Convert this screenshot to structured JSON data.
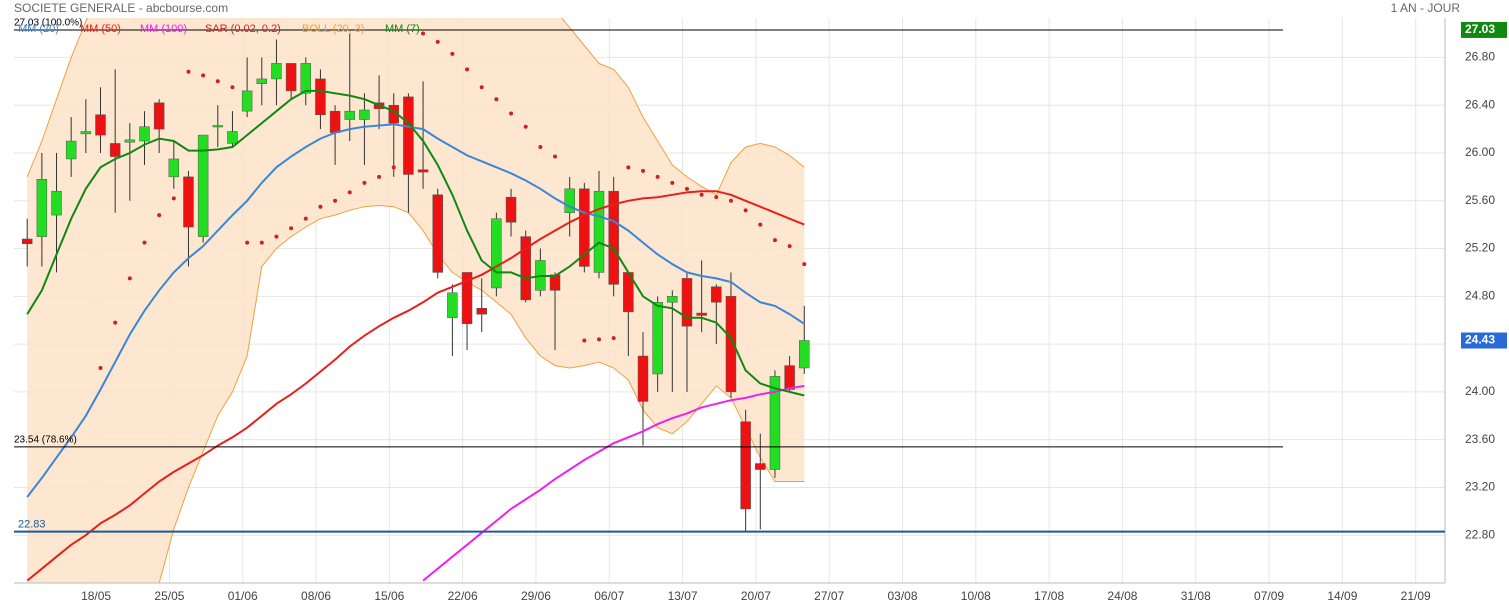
{
  "chart_data": {
    "type": "candlestick",
    "title": "SOCIETE GENERALE - abcbourse.com",
    "period": "1 AN - JOUR",
    "x": [
      0,
      1,
      2,
      3,
      4,
      5,
      6,
      7,
      8,
      9,
      10,
      11,
      12,
      13,
      14,
      15,
      16,
      17,
      18,
      19,
      20,
      21,
      22,
      23,
      24,
      25,
      26,
      27,
      28,
      29,
      30,
      31,
      32,
      33,
      34,
      35,
      36,
      37,
      38,
      39,
      40,
      41,
      42,
      43,
      44,
      45,
      46,
      47,
      48,
      49,
      50,
      51,
      52,
      53
    ],
    "open": [
      25.28,
      25.3,
      25.48,
      25.95,
      26.16,
      26.32,
      26.08,
      26.09,
      26.1,
      26.42,
      25.8,
      25.8,
      25.3,
      26.22,
      26.08,
      26.35,
      26.58,
      26.62,
      26.75,
      26.5,
      26.62,
      26.35,
      26.28,
      26.28,
      26.42,
      26.4,
      26.47,
      25.86,
      25.65,
      24.62,
      25.0,
      24.7,
      24.87,
      25.63,
      25.3,
      24.85,
      24.98,
      25.5,
      25.7,
      25.0,
      25.68,
      25.0,
      24.3,
      24.15,
      24.75,
      24.95,
      24.66,
      24.88,
      24.8,
      23.75,
      23.4,
      23.35,
      24.22,
      24.2
    ],
    "high": [
      25.45,
      26.0,
      26.0,
      26.3,
      26.45,
      26.55,
      26.7,
      26.25,
      26.35,
      26.45,
      26.1,
      25.85,
      26.15,
      26.4,
      26.35,
      26.8,
      26.8,
      26.95,
      26.75,
      26.8,
      26.7,
      26.4,
      27.0,
      26.5,
      26.65,
      26.5,
      26.5,
      26.6,
      25.7,
      24.9,
      25.0,
      24.95,
      25.5,
      25.7,
      25.35,
      25.2,
      25.0,
      25.8,
      25.75,
      25.85,
      25.8,
      25.0,
      24.5,
      24.8,
      24.85,
      25.0,
      25.1,
      24.9,
      25.0,
      23.85,
      23.65,
      24.18,
      24.3,
      24.72
    ],
    "low": [
      25.05,
      25.05,
      25.0,
      25.8,
      26.0,
      26.0,
      25.5,
      25.6,
      25.9,
      26.0,
      25.7,
      25.05,
      25.25,
      26.05,
      26.05,
      26.3,
      26.4,
      26.4,
      26.45,
      26.4,
      26.2,
      25.9,
      26.1,
      25.9,
      26.2,
      25.8,
      25.5,
      25.7,
      24.95,
      24.3,
      24.35,
      24.5,
      24.8,
      25.3,
      24.75,
      24.8,
      24.35,
      25.3,
      25.0,
      24.95,
      24.8,
      24.3,
      23.55,
      24.0,
      24.0,
      24.0,
      24.5,
      24.4,
      23.95,
      22.83,
      22.85,
      23.28,
      24.0,
      24.15
    ],
    "close": [
      25.24,
      25.78,
      25.68,
      26.1,
      26.18,
      26.15,
      25.97,
      26.11,
      26.22,
      26.2,
      25.95,
      25.38,
      26.15,
      26.23,
      26.18,
      26.52,
      26.62,
      26.75,
      26.52,
      26.75,
      26.32,
      26.17,
      26.35,
      26.36,
      26.37,
      26.25,
      25.82,
      25.84,
      25.0,
      24.83,
      24.57,
      24.65,
      25.45,
      25.42,
      24.77,
      25.1,
      24.85,
      25.7,
      25.05,
      25.68,
      24.9,
      24.67,
      23.92,
      24.75,
      24.8,
      24.55,
      24.64,
      24.75,
      24.0,
      23.02,
      23.35,
      24.13,
      24.02,
      24.43
    ],
    "up_color": "#22dd22",
    "down_color": "#ee1111",
    "indicators": [
      {
        "name": "MM (20)",
        "color": "#3a86d8",
        "style": "line",
        "values": [
          23.12,
          23.28,
          23.45,
          23.62,
          23.8,
          24.02,
          24.25,
          24.48,
          24.68,
          24.85,
          25.0,
          25.12,
          25.22,
          25.35,
          25.48,
          25.6,
          25.75,
          25.88,
          25.97,
          26.05,
          26.12,
          26.17,
          26.2,
          26.22,
          26.23,
          26.24,
          26.22,
          26.2,
          26.12,
          26.05,
          25.98,
          25.93,
          25.88,
          25.83,
          25.77,
          25.7,
          25.62,
          25.55,
          25.5,
          25.47,
          25.43,
          25.35,
          25.25,
          25.15,
          25.07,
          25.0,
          24.97,
          24.95,
          24.92,
          24.83,
          24.75,
          24.72,
          24.65,
          24.57
        ]
      },
      {
        "name": "MM (50)",
        "color": "#e8201a",
        "style": "line",
        "values": [
          22.42,
          22.52,
          22.62,
          22.72,
          22.8,
          22.9,
          22.97,
          23.05,
          23.15,
          23.25,
          23.33,
          23.4,
          23.47,
          23.55,
          23.62,
          23.7,
          23.8,
          23.9,
          23.98,
          24.07,
          24.17,
          24.27,
          24.38,
          24.47,
          24.55,
          24.62,
          24.68,
          24.75,
          24.83,
          24.88,
          24.93,
          24.98,
          25.05,
          25.12,
          25.2,
          25.28,
          25.35,
          25.42,
          25.48,
          25.53,
          25.57,
          25.6,
          25.62,
          25.63,
          25.65,
          25.67,
          25.68,
          25.68,
          25.65,
          25.6,
          25.55,
          25.5,
          25.45,
          25.4
        ]
      },
      {
        "name": "MM (100)",
        "color": "#ee22ee",
        "style": "line",
        "values": [
          null,
          null,
          null,
          null,
          null,
          null,
          null,
          null,
          null,
          null,
          null,
          null,
          null,
          null,
          null,
          null,
          null,
          null,
          null,
          null,
          null,
          null,
          null,
          null,
          null,
          null,
          null,
          22.42,
          22.52,
          22.62,
          22.72,
          22.82,
          22.92,
          23.02,
          23.1,
          23.18,
          23.27,
          23.35,
          23.43,
          23.5,
          23.57,
          23.62,
          23.67,
          23.73,
          23.78,
          23.82,
          23.87,
          23.9,
          23.93,
          23.95,
          23.98,
          24.0,
          24.03,
          24.05
        ]
      },
      {
        "name": "SAR (0.02, 0.2)",
        "color": "#cc2222",
        "style": "dots",
        "values": [
          null,
          null,
          null,
          null,
          null,
          24.2,
          24.58,
          24.95,
          25.25,
          25.48,
          25.62,
          26.68,
          26.65,
          26.6,
          26.55,
          25.25,
          25.25,
          25.3,
          25.37,
          25.45,
          25.55,
          25.6,
          25.67,
          25.75,
          25.8,
          25.88,
          null,
          27.0,
          26.93,
          26.83,
          26.7,
          26.55,
          26.45,
          26.33,
          26.22,
          26.05,
          25.97,
          null,
          24.43,
          24.44,
          24.45,
          25.88,
          25.85,
          25.8,
          25.75,
          25.7,
          25.65,
          25.63,
          25.6,
          25.52,
          25.4,
          25.27,
          25.22,
          25.07
        ]
      },
      {
        "name": "BOLL (20, 3)",
        "color": "#f0a040",
        "fill": "#fde3c8",
        "style": "band",
        "upper": [
          25.8,
          26.1,
          26.45,
          26.8,
          27.1,
          27.4,
          27.5,
          27.5,
          27.5,
          27.5,
          27.5,
          27.5,
          27.5,
          27.5,
          27.5,
          27.5,
          27.5,
          27.5,
          27.5,
          27.5,
          27.5,
          27.5,
          27.5,
          27.5,
          27.5,
          27.5,
          27.5,
          27.5,
          27.5,
          27.5,
          27.5,
          27.5,
          27.5,
          27.5,
          27.5,
          27.4,
          27.2,
          27.05,
          26.9,
          26.75,
          26.7,
          26.55,
          26.3,
          26.1,
          25.9,
          25.8,
          25.72,
          25.65,
          25.92,
          26.05,
          26.08,
          26.05,
          25.98,
          25.88
        ],
        "lower": [
          22.0,
          22.0,
          22.0,
          22.0,
          22.0,
          22.05,
          22.1,
          22.15,
          22.2,
          22.4,
          22.85,
          23.2,
          23.5,
          23.8,
          24.0,
          24.3,
          25.05,
          25.2,
          25.3,
          25.38,
          25.45,
          25.48,
          25.52,
          25.55,
          25.56,
          25.55,
          25.5,
          25.35,
          25.15,
          25.0,
          24.92,
          24.85,
          24.75,
          24.65,
          24.45,
          24.3,
          24.22,
          24.2,
          24.22,
          24.25,
          24.2,
          24.1,
          23.85,
          23.7,
          23.65,
          23.75,
          23.9,
          24.05,
          23.95,
          23.7,
          23.45,
          23.25,
          23.25,
          23.25
        ]
      },
      {
        "name": "MM (7)",
        "color": "#118811",
        "style": "line",
        "values": [
          24.65,
          24.85,
          25.15,
          25.45,
          25.7,
          25.88,
          25.95,
          26.0,
          26.07,
          26.12,
          26.1,
          26.02,
          26.02,
          26.03,
          26.05,
          26.15,
          26.25,
          26.35,
          26.45,
          26.52,
          26.52,
          26.5,
          26.48,
          26.45,
          26.4,
          26.35,
          26.25,
          26.1,
          25.9,
          25.65,
          25.35,
          25.1,
          25.0,
          25.0,
          24.95,
          24.97,
          24.97,
          25.05,
          25.15,
          25.25,
          25.2,
          25.0,
          24.8,
          24.72,
          24.7,
          24.62,
          24.62,
          24.58,
          24.45,
          24.18,
          24.07,
          24.03,
          24.0,
          23.97
        ]
      }
    ],
    "levels": [
      {
        "value": 27.03,
        "label": "27.03 (100.0%)",
        "color": "#000000",
        "kind": "fibonacci"
      },
      {
        "value": 23.54,
        "label": "23.54  (78.6%)",
        "color": "#000000",
        "kind": "fibonacci"
      },
      {
        "value": 22.83,
        "label": "22.83",
        "color": "#1a5a9a",
        "kind": "horizontal"
      }
    ],
    "price_markers": [
      {
        "value": 27.03,
        "label": "27.03",
        "color": "#118811"
      },
      {
        "value": 24.43,
        "label": "24.43",
        "color": "#2a6ad8"
      }
    ],
    "xlim": [
      -0.9,
      96.7
    ],
    "ylim": [
      22.4,
      27.13
    ],
    "yticks": [
      {
        "value": 22.8,
        "label": "22.80"
      },
      {
        "value": 23.2,
        "label": "23.20"
      },
      {
        "value": 23.6,
        "label": "23.60"
      },
      {
        "value": 24.0,
        "label": "24.00"
      },
      {
        "value": 24.4,
        "label": "24.40"
      },
      {
        "value": 24.8,
        "label": "24.80"
      },
      {
        "value": 25.2,
        "label": "25.20"
      },
      {
        "value": 25.6,
        "label": "25.60"
      },
      {
        "value": 26.0,
        "label": "26.00"
      },
      {
        "value": 26.4,
        "label": "26.40"
      },
      {
        "value": 26.8,
        "label": "26.80"
      }
    ],
    "xticks": [
      {
        "value": 4.7,
        "label": "18/05"
      },
      {
        "value": 9.7,
        "label": "25/05"
      },
      {
        "value": 14.7,
        "label": "01/06"
      },
      {
        "value": 19.7,
        "label": "08/06"
      },
      {
        "value": 24.7,
        "label": "15/06"
      },
      {
        "value": 29.7,
        "label": "22/06"
      },
      {
        "value": 34.7,
        "label": "29/06"
      },
      {
        "value": 39.7,
        "label": "06/07"
      },
      {
        "value": 44.7,
        "label": "13/07"
      },
      {
        "value": 49.7,
        "label": "20/07"
      },
      {
        "value": 54.7,
        "label": "27/07"
      },
      {
        "value": 59.7,
        "label": "03/08"
      },
      {
        "value": 64.7,
        "label": "10/08"
      },
      {
        "value": 69.7,
        "label": "17/08"
      },
      {
        "value": 74.7,
        "label": "24/08"
      },
      {
        "value": 79.7,
        "label": "31/08"
      },
      {
        "value": 84.7,
        "label": "07/09"
      },
      {
        "value": 89.7,
        "label": "14/09"
      },
      {
        "value": 94.7,
        "label": "21/09"
      }
    ],
    "grid": true
  }
}
